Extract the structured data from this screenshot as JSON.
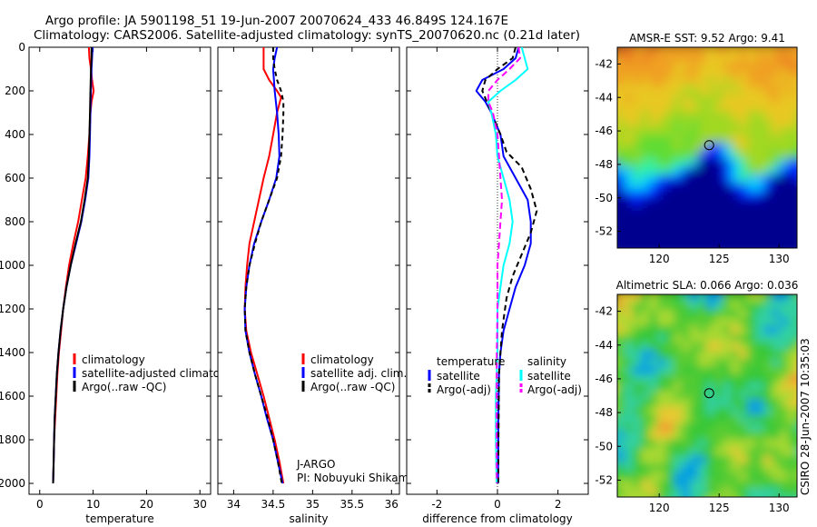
{
  "title": {
    "line1": "Argo profile: JA 5901198_51 19-Jun-2007 20070624_433 46.849S 124.167E",
    "line2": "Climatology: CARS2006. Satellite-adjusted climatology: synTS_20070620.nc (0.21d later)"
  },
  "credit": "CSIRO 28-Jun-2007 10:35:03",
  "colors": {
    "climatology": "#ff0000",
    "satellite": "#0000ff",
    "argo": "#000000",
    "satellite_sal": "#00ffff",
    "argo_sal": "#ff00ff"
  },
  "chart_data": [
    {
      "id": "temperature",
      "type": "line",
      "xlabel": "temperature",
      "xlim": [
        -2,
        32
      ],
      "ylim": [
        2050,
        0
      ],
      "xticks": [
        0,
        10,
        20,
        30
      ],
      "yticks": [
        0,
        200,
        400,
        600,
        800,
        1000,
        1200,
        1400,
        1600,
        1800,
        2000
      ],
      "legend_title": "",
      "legend": [
        "climatology",
        "satellite-adjusted climatolog",
        "Argo(..raw -QC)"
      ],
      "series": [
        {
          "name": "climatology",
          "color": "#ff0000",
          "dash": "",
          "points": [
            [
              9.2,
              0
            ],
            [
              9.3,
              50
            ],
            [
              9.6,
              100
            ],
            [
              9.8,
              150
            ],
            [
              10.1,
              200
            ],
            [
              9.7,
              250
            ],
            [
              9.5,
              300
            ],
            [
              9.3,
              400
            ],
            [
              9.0,
              500
            ],
            [
              8.6,
              600
            ],
            [
              7.9,
              700
            ],
            [
              7.2,
              800
            ],
            [
              6.3,
              900
            ],
            [
              5.5,
              1000
            ],
            [
              4.9,
              1100
            ],
            [
              4.4,
              1200
            ],
            [
              4.0,
              1300
            ],
            [
              3.6,
              1400
            ],
            [
              3.3,
              1500
            ],
            [
              3.1,
              1600
            ],
            [
              2.9,
              1700
            ],
            [
              2.7,
              1800
            ],
            [
              2.6,
              1900
            ],
            [
              2.5,
              2000
            ]
          ]
        },
        {
          "name": "satellite",
          "color": "#0000ff",
          "dash": "",
          "points": [
            [
              9.9,
              0
            ],
            [
              9.8,
              50
            ],
            [
              9.7,
              100
            ],
            [
              9.6,
              200
            ],
            [
              9.5,
              300
            ],
            [
              9.4,
              400
            ],
            [
              9.3,
              500
            ],
            [
              9.1,
              600
            ],
            [
              8.5,
              700
            ],
            [
              7.8,
              800
            ],
            [
              6.8,
              900
            ],
            [
              5.8,
              1000
            ],
            [
              5.0,
              1100
            ],
            [
              4.4,
              1200
            ],
            [
              3.9,
              1300
            ],
            [
              3.5,
              1400
            ],
            [
              3.2,
              1500
            ],
            [
              3.0,
              1600
            ],
            [
              2.8,
              1700
            ],
            [
              2.7,
              1800
            ],
            [
              2.6,
              1900
            ],
            [
              2.5,
              2000
            ]
          ]
        },
        {
          "name": "argo",
          "color": "#000000",
          "dash": "",
          "points": [
            [
              9.7,
              0
            ],
            [
              9.7,
              50
            ],
            [
              9.6,
              100
            ],
            [
              9.5,
              200
            ],
            [
              9.4,
              300
            ],
            [
              9.3,
              400
            ],
            [
              9.2,
              500
            ],
            [
              9.0,
              600
            ],
            [
              8.4,
              700
            ],
            [
              7.7,
              800
            ],
            [
              6.7,
              900
            ],
            [
              5.8,
              1000
            ],
            [
              5.0,
              1100
            ],
            [
              4.4,
              1200
            ],
            [
              3.9,
              1300
            ],
            [
              3.5,
              1400
            ],
            [
              3.2,
              1500
            ],
            [
              3.0,
              1600
            ],
            [
              2.8,
              1700
            ],
            [
              2.7,
              1800
            ],
            [
              2.6,
              1900
            ],
            [
              2.5,
              2000
            ]
          ]
        }
      ]
    },
    {
      "id": "salinity",
      "type": "line",
      "xlabel": "salinity",
      "xlim": [
        33.8,
        36.1
      ],
      "ylim": [
        2050,
        0
      ],
      "xticks": [
        34,
        34.5,
        35,
        35.5,
        36
      ],
      "legend_title": "",
      "legend": [
        "climatology",
        "satellite adj. clim.",
        "Argo(..raw -QC)"
      ],
      "annotation": [
        "J-ARGO",
        "PI: Nobuyuki Shikama"
      ],
      "series": [
        {
          "name": "climatology",
          "color": "#ff0000",
          "dash": "",
          "points": [
            [
              34.38,
              0
            ],
            [
              34.38,
              50
            ],
            [
              34.38,
              100
            ],
            [
              34.45,
              150
            ],
            [
              34.55,
              200
            ],
            [
              34.6,
              230
            ],
            [
              34.55,
              300
            ],
            [
              34.5,
              400
            ],
            [
              34.45,
              500
            ],
            [
              34.38,
              600
            ],
            [
              34.32,
              700
            ],
            [
              34.26,
              800
            ],
            [
              34.2,
              900
            ],
            [
              34.17,
              1000
            ],
            [
              34.15,
              1100
            ],
            [
              34.14,
              1200
            ],
            [
              34.16,
              1300
            ],
            [
              34.22,
              1400
            ],
            [
              34.3,
              1500
            ],
            [
              34.38,
              1600
            ],
            [
              34.45,
              1700
            ],
            [
              34.52,
              1800
            ],
            [
              34.58,
              1900
            ],
            [
              34.63,
              2000
            ]
          ]
        },
        {
          "name": "satellite",
          "color": "#0000ff",
          "dash": "",
          "points": [
            [
              34.55,
              0
            ],
            [
              34.52,
              50
            ],
            [
              34.5,
              100
            ],
            [
              34.52,
              200
            ],
            [
              34.55,
              300
            ],
            [
              34.57,
              400
            ],
            [
              34.58,
              500
            ],
            [
              34.54,
              600
            ],
            [
              34.45,
              700
            ],
            [
              34.35,
              800
            ],
            [
              34.26,
              900
            ],
            [
              34.2,
              1000
            ],
            [
              34.16,
              1100
            ],
            [
              34.14,
              1200
            ],
            [
              34.15,
              1300
            ],
            [
              34.2,
              1400
            ],
            [
              34.27,
              1500
            ],
            [
              34.35,
              1600
            ],
            [
              34.42,
              1700
            ],
            [
              34.5,
              1800
            ],
            [
              34.56,
              1900
            ],
            [
              34.62,
              2000
            ]
          ]
        },
        {
          "name": "argo",
          "color": "#000000",
          "dash": "5,4",
          "points": [
            [
              34.5,
              0
            ],
            [
              34.5,
              50
            ],
            [
              34.52,
              100
            ],
            [
              34.55,
              150
            ],
            [
              34.6,
              200
            ],
            [
              34.63,
              250
            ],
            [
              34.63,
              300
            ],
            [
              34.62,
              400
            ],
            [
              34.6,
              500
            ],
            [
              34.55,
              600
            ],
            [
              34.45,
              700
            ],
            [
              34.35,
              800
            ],
            [
              34.27,
              900
            ],
            [
              34.2,
              1000
            ],
            [
              34.16,
              1100
            ],
            [
              34.14,
              1200
            ],
            [
              34.15,
              1300
            ],
            [
              34.2,
              1400
            ],
            [
              34.27,
              1500
            ],
            [
              34.35,
              1600
            ],
            [
              34.43,
              1700
            ],
            [
              34.5,
              1800
            ],
            [
              34.56,
              1900
            ],
            [
              34.61,
              2000
            ]
          ]
        }
      ]
    },
    {
      "id": "difference",
      "type": "line",
      "xlabel": "difference from climatology",
      "xlim": [
        -3,
        3
      ],
      "ylim": [
        2050,
        0
      ],
      "xticks": [
        -2,
        0,
        2
      ],
      "zero_line": 0,
      "legend_left": {
        "title": "temperature",
        "items": [
          "satellite",
          "Argo(-adj)"
        ]
      },
      "legend_right": {
        "title": "salinity",
        "items": [
          "satellite",
          "Argo(-adj)"
        ]
      },
      "series": [
        {
          "name": "temp-satellite",
          "color": "#0000ff",
          "dash": "",
          "points": [
            [
              0.7,
              0
            ],
            [
              0.6,
              50
            ],
            [
              0.2,
              100
            ],
            [
              -0.5,
              150
            ],
            [
              -0.7,
              200
            ],
            [
              -0.4,
              250
            ],
            [
              -0.2,
              300
            ],
            [
              0.1,
              400
            ],
            [
              0.2,
              500
            ],
            [
              0.6,
              600
            ],
            [
              1.0,
              700
            ],
            [
              1.1,
              800
            ],
            [
              1.1,
              900
            ],
            [
              0.9,
              1000
            ],
            [
              0.6,
              1100
            ],
            [
              0.4,
              1200
            ],
            [
              0.2,
              1300
            ],
            [
              0.1,
              1400
            ],
            [
              0.05,
              1500
            ],
            [
              0.03,
              1700
            ],
            [
              0.02,
              2000
            ]
          ]
        },
        {
          "name": "temp-argo",
          "color": "#000000",
          "dash": "6,4",
          "points": [
            [
              0.6,
              0
            ],
            [
              0.5,
              50
            ],
            [
              0.0,
              100
            ],
            [
              -0.4,
              150
            ],
            [
              -0.5,
              200
            ],
            [
              -0.2,
              300
            ],
            [
              0.1,
              400
            ],
            [
              0.3,
              480
            ],
            [
              0.8,
              550
            ],
            [
              1.1,
              650
            ],
            [
              1.3,
              750
            ],
            [
              1.1,
              850
            ],
            [
              0.8,
              950
            ],
            [
              0.5,
              1050
            ],
            [
              0.3,
              1150
            ],
            [
              0.15,
              1300
            ],
            [
              0.05,
              1500
            ],
            [
              0.02,
              2000
            ]
          ]
        },
        {
          "name": "sal-satellite",
          "color": "#00ffff",
          "dash": "",
          "points": [
            [
              0.8,
              0
            ],
            [
              0.9,
              50
            ],
            [
              1.0,
              100
            ],
            [
              0.6,
              150
            ],
            [
              0.1,
              200
            ],
            [
              -0.3,
              250
            ],
            [
              -0.2,
              300
            ],
            [
              -0.05,
              400
            ],
            [
              0.0,
              500
            ],
            [
              0.2,
              600
            ],
            [
              0.4,
              700
            ],
            [
              0.5,
              800
            ],
            [
              0.4,
              900
            ],
            [
              0.2,
              1000
            ],
            [
              0.1,
              1100
            ],
            [
              0.0,
              1200
            ],
            [
              0.0,
              1400
            ],
            [
              -0.05,
              1600
            ],
            [
              -0.05,
              1800
            ],
            [
              -0.03,
              2000
            ]
          ]
        },
        {
          "name": "sal-argo",
          "color": "#ff00ff",
          "dash": "7,4",
          "points": [
            [
              0.7,
              0
            ],
            [
              0.75,
              50
            ],
            [
              0.4,
              100
            ],
            [
              0.0,
              150
            ],
            [
              -0.3,
              200
            ],
            [
              -0.3,
              250
            ],
            [
              -0.15,
              300
            ],
            [
              0.0,
              400
            ],
            [
              0.05,
              500
            ],
            [
              0.1,
              600
            ],
            [
              0.15,
              700
            ],
            [
              0.1,
              800
            ],
            [
              0.05,
              900
            ],
            [
              0.0,
              1000
            ],
            [
              0.0,
              1200
            ],
            [
              -0.02,
              1400
            ],
            [
              -0.03,
              1700
            ],
            [
              -0.02,
              2000
            ]
          ]
        }
      ]
    },
    {
      "id": "amsre-sst-map",
      "type": "heatmap",
      "title": "AMSR-E SST: 9.52 Argo: 9.41",
      "xlim": [
        116.5,
        131.5
      ],
      "ylim": [
        -53,
        -41
      ],
      "xticks": [
        120,
        125,
        130
      ],
      "yticks": [
        -42,
        -44,
        -46,
        -48,
        -50,
        -52
      ],
      "marker": [
        124.167,
        -46.849
      ],
      "palette": [
        "#00008f",
        "#0020ff",
        "#00c8ff",
        "#30f0a0",
        "#60dc30",
        "#a0d820",
        "#e8c820",
        "#f0a020",
        "#e87020"
      ]
    },
    {
      "id": "altimetric-sla-map",
      "type": "heatmap",
      "title": "Altimetric SLA: 0.066 Argo: 0.036",
      "xlim": [
        116.5,
        131.5
      ],
      "ylim": [
        -53,
        -41
      ],
      "xticks": [
        120,
        125,
        130
      ],
      "yticks": [
        -42,
        -44,
        -46,
        -48,
        -50,
        -52
      ],
      "marker": [
        124.167,
        -46.849
      ],
      "palette": [
        "#00a0e0",
        "#30d0a0",
        "#38c838",
        "#58cc30",
        "#a8d830",
        "#e8c830",
        "#f09830",
        "#e87828"
      ]
    }
  ]
}
